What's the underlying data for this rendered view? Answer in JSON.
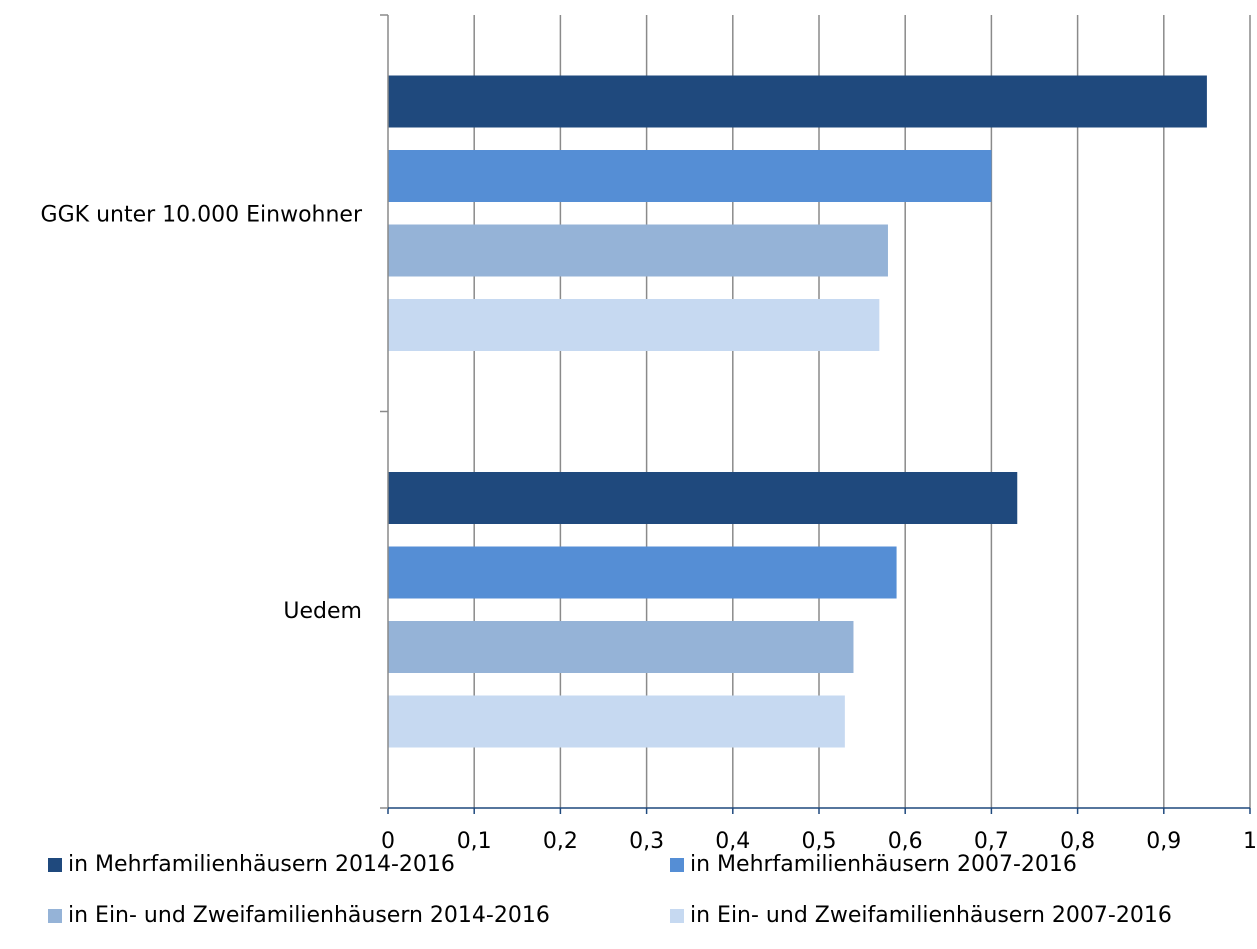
{
  "chart_data": {
    "type": "bar",
    "orientation": "horizontal",
    "categories": [
      "GGK unter 10.000 Einwohner",
      "Uedem"
    ],
    "series": [
      {
        "name": "in Mehrfamilienhäusern 2014-2016",
        "color": "#1F497D",
        "values": [
          0.95,
          0.73
        ]
      },
      {
        "name": "in Mehrfamilienhäusern 2007-2016",
        "color": "#558ED5",
        "values": [
          0.7,
          0.59
        ]
      },
      {
        "name": "in Ein- und Zweifamilienhäusern 2014-2016",
        "color": "#95B3D7",
        "values": [
          0.58,
          0.54
        ]
      },
      {
        "name": "in Ein- und Zweifamilienhäusern 2007-2016",
        "color": "#C6D9F1",
        "values": [
          0.57,
          0.53
        ]
      }
    ],
    "xlim": [
      0,
      1
    ],
    "xticks": [
      "0",
      "0,1",
      "0,2",
      "0,3",
      "0,4",
      "0,5",
      "0,6",
      "0,7",
      "0,8",
      "0,9",
      "1"
    ],
    "grid": true,
    "legend_position": "bottom",
    "title": "",
    "xlabel": "",
    "ylabel": ""
  }
}
